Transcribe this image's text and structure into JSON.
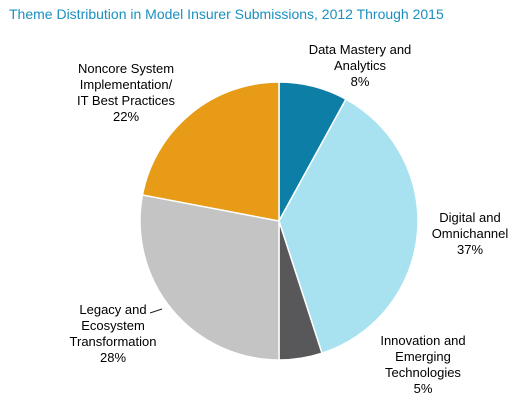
{
  "chart_data": {
    "type": "pie",
    "title": "Theme Distribution in Model Insurer Submissions, 2012 Through 2015",
    "slices": [
      {
        "label_lines": [
          "Data Mastery and",
          "Analytics"
        ],
        "value_text": "8%",
        "value": 8,
        "color": "#0d7fa7"
      },
      {
        "label_lines": [
          "Digital and",
          "Omnichannel"
        ],
        "value_text": "37%",
        "value": 37,
        "color": "#a8e1ef"
      },
      {
        "label_lines": [
          "Innovation and",
          "Emerging",
          "Technologies"
        ],
        "value_text": "5%",
        "value": 5,
        "color": "#58585a"
      },
      {
        "label_lines": [
          "Legacy and",
          "Ecosystem",
          "Transformation"
        ],
        "value_text": "28%",
        "value": 28,
        "color": "#c4c4c4"
      },
      {
        "label_lines": [
          "Noncore System",
          "Implementation/",
          "IT Best Practices"
        ],
        "value_text": "22%",
        "value": 22,
        "color": "#e89b16"
      }
    ]
  }
}
